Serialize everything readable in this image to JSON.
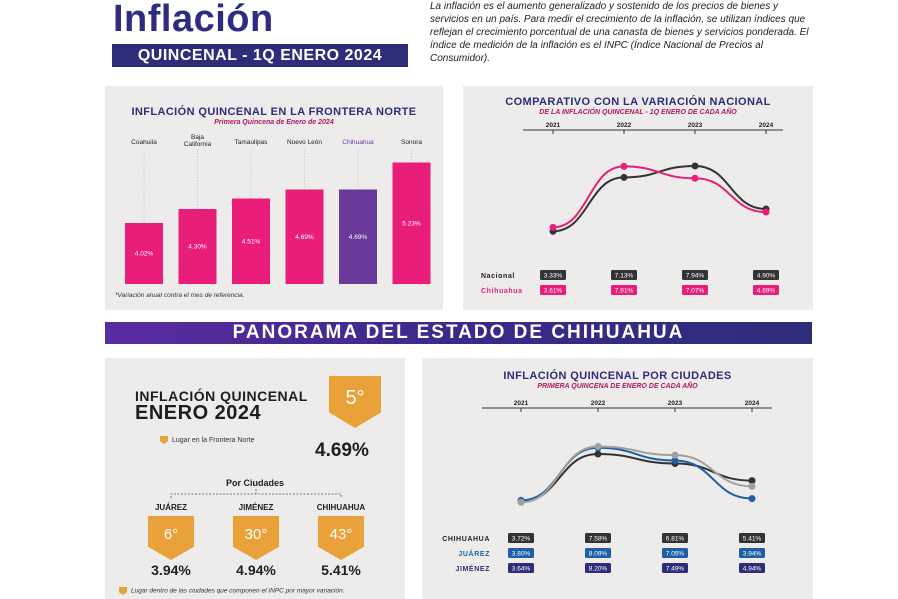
{
  "header": {
    "title": "Inflación",
    "subtitle": "QUINCENAL - 1Q ENERO 2024",
    "intro": "La inflación es el aumento generalizado y sostenido de los precios de bienes y servicios en un país. Para medir el crecimiento de la inflación, se utilizan índices que reflejan el crecimiento porcentual de una canasta de bienes y servicios ponderada. El índice de medición de la inflación es el INPC (Índice Nacional de Precios al Consumidor)."
  },
  "banner": "PANORAMA DEL ESTADO DE CHIHUAHUA",
  "summary": {
    "title_line1": "INFLACIÓN QUINCENAL",
    "title_line2": "ENERO 2024",
    "rank": "5°",
    "rank_caption": "Lugar en la Frontera Norte",
    "value": "4.69%",
    "by_cities": "Por Ciudades",
    "footnote": "Lugar dentro de las ciudades que componen el INPC por mayor variación.",
    "cities": [
      {
        "name": "JUÁREZ",
        "rank": "6°",
        "value": "3.94%"
      },
      {
        "name": "JIMÉNEZ",
        "rank": "30°",
        "value": "4.94%"
      },
      {
        "name": "CHIHUAHUA",
        "rank": "43°",
        "value": "5.41%"
      }
    ]
  },
  "colors": {
    "pink": "#e91e7a",
    "purple": "#6a3a9a",
    "navy": "#2d2d7a",
    "gold": "#e9a23a",
    "dark": "#333333",
    "grey": "#a0a0a0",
    "blue": "#1e5fa8"
  },
  "chart_data": [
    {
      "type": "bar",
      "title": "INFLACIÓN QUINCENAL EN LA FRONTERA NORTE",
      "subtitle": "Primera Quincena de Enero de 2024",
      "categories": [
        "Coahuila",
        "Baja California",
        "Tamaulipas",
        "Nuevo León",
        "Chihuahua",
        "Sonora"
      ],
      "values": [
        4.02,
        4.3,
        4.51,
        4.69,
        4.69,
        5.23
      ],
      "labels": [
        "4.02%",
        "4.30%",
        "4.51%",
        "4.69%",
        "4.69%",
        "5.23%"
      ],
      "highlight": "Chihuahua",
      "note": "*Variación anual contra el mes de referencia."
    },
    {
      "type": "line",
      "title": "COMPARATIVO CON LA VARIACIÓN NACIONAL",
      "subtitle": "DE LA INFLACIÓN QUINCENAL - 1Q ENERO DE CADA AÑO",
      "x": [
        "2021",
        "2022",
        "2023",
        "2024"
      ],
      "series": [
        {
          "name": "Nacional",
          "values": [
            3.33,
            7.13,
            7.94,
            4.9
          ],
          "labels": [
            "3.33%",
            "7.13%",
            "7.94%",
            "4.90%"
          ]
        },
        {
          "name": "Chihuahua",
          "values": [
            3.61,
            7.91,
            7.07,
            4.69
          ],
          "labels": [
            "3.61%",
            "7.91%",
            "7.07%",
            "4.69%"
          ]
        }
      ]
    },
    {
      "type": "line",
      "title": "INFLACIÓN QUINCENAL POR CIUDADES",
      "subtitle": "PRIMERA QUINCENA DE ENERO DE CADA AÑO",
      "x": [
        "2021",
        "2022",
        "2023",
        "2024"
      ],
      "series": [
        {
          "name": "CHIHUAHUA",
          "values": [
            3.72,
            7.58,
            6.81,
            5.41
          ],
          "labels": [
            "3.72%",
            "7.58%",
            "6.81%",
            "5.41%"
          ]
        },
        {
          "name": "JUÁREZ",
          "values": [
            3.8,
            8.09,
            7.05,
            3.94
          ],
          "labels": [
            "3.80%",
            "8.09%",
            "7.05%",
            "3.94%"
          ]
        },
        {
          "name": "JIMÉNEZ",
          "values": [
            3.64,
            8.2,
            7.49,
            4.94
          ],
          "labels": [
            "3.64%",
            "8.20%",
            "7.49%",
            "4.94%"
          ]
        }
      ]
    }
  ]
}
